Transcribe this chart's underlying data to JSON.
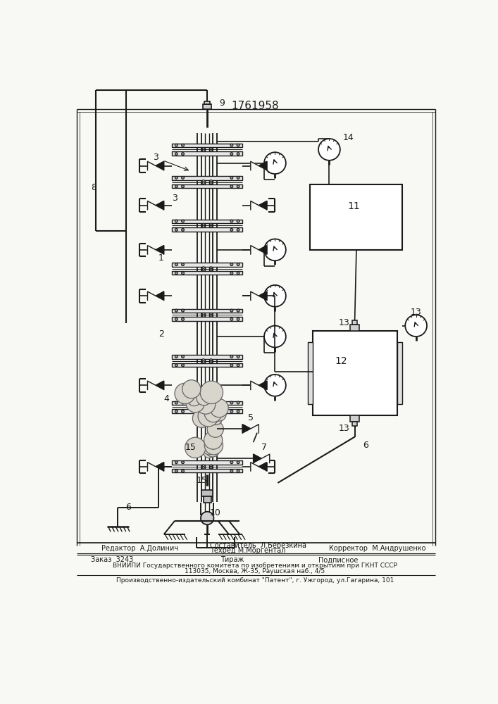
{
  "patent_number": "1761958",
  "bg_color": "#f8f8f5",
  "line_color": "#1a1a1a",
  "footer": {
    "editor": "Редактор  А.Долинич",
    "composer": "Составитель  Л.Березкина",
    "techred": "Техред М.Моргентал",
    "corrector": "Корректор  М.Андрушенко",
    "order": "Заказ  3243",
    "tirazh": "Тираж",
    "podpisnoe": "Подписное",
    "vniiipi": "ВНИИПИ Государственного комитета по изобретениям и открытиям при ГКНТ СССР",
    "address": "113035, Москва, Ж-35, Раушская наб., 4/5",
    "patent": "Производственно-издательский комбинат \"Патент\", г. Ужгород, ул.Гагарина, 101"
  }
}
